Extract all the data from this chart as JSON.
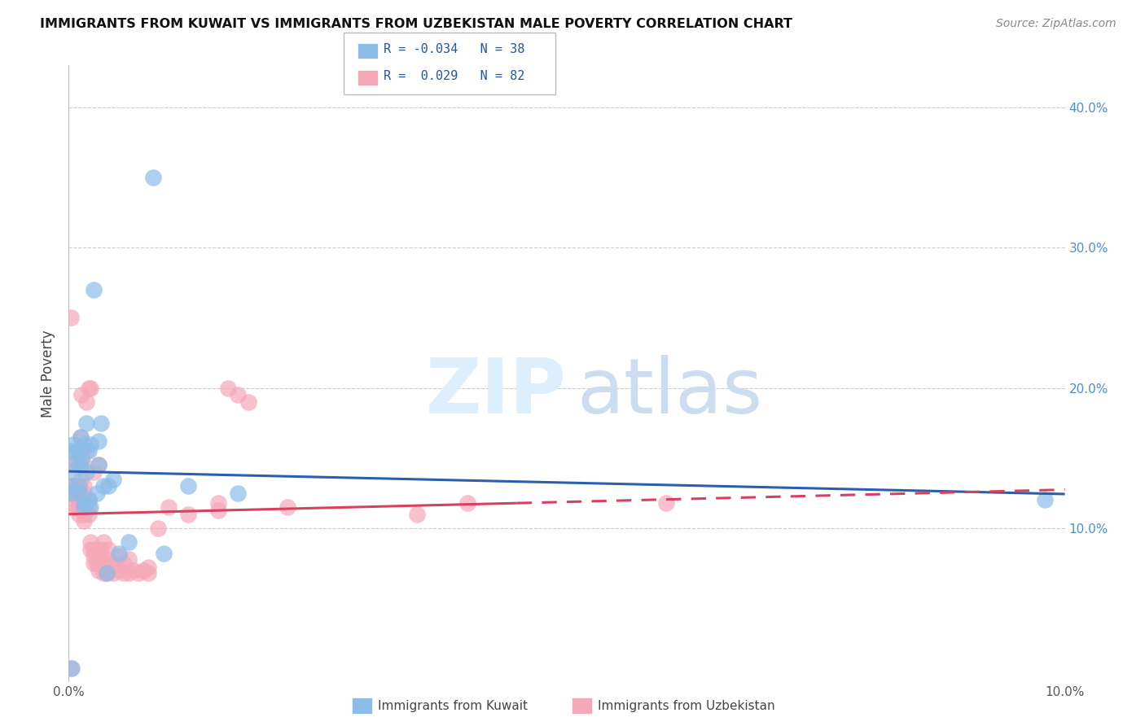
{
  "title": "IMMIGRANTS FROM KUWAIT VS IMMIGRANTS FROM UZBEKISTAN MALE POVERTY CORRELATION CHART",
  "source": "Source: ZipAtlas.com",
  "ylabel": "Male Poverty",
  "xlim": [
    0,
    0.1
  ],
  "ylim": [
    -0.01,
    0.43
  ],
  "yticks": [
    0.1,
    0.2,
    0.3,
    0.4
  ],
  "ytick_labels": [
    "10.0%",
    "20.0%",
    "30.0%",
    "40.0%"
  ],
  "xticks": [
    0.0,
    0.025,
    0.05,
    0.075,
    0.1
  ],
  "xtick_labels": [
    "0.0%",
    "",
    "",
    "",
    "10.0%"
  ],
  "grid_color": "#cccccc",
  "background_color": "#ffffff",
  "blue_color": "#8bbde8",
  "pink_color": "#f5a8b8",
  "blue_line_color": "#2b5fad",
  "pink_line_color": "#d94060",
  "legend_R_blue": "-0.034",
  "legend_N_blue": "38",
  "legend_R_pink": "0.029",
  "legend_N_pink": "82",
  "legend_label_blue": "Immigrants from Kuwait",
  "legend_label_pink": "Immigrants from Uzbekistan",
  "kuwait_x": [
    0.0002,
    0.0002,
    0.0003,
    0.0005,
    0.0005,
    0.0008,
    0.0008,
    0.001,
    0.001,
    0.0012,
    0.0012,
    0.0013,
    0.0015,
    0.0015,
    0.0015,
    0.0018,
    0.0018,
    0.002,
    0.002,
    0.0022,
    0.0022,
    0.0025,
    0.0028,
    0.003,
    0.003,
    0.0032,
    0.0035,
    0.0038,
    0.004,
    0.0045,
    0.005,
    0.006,
    0.0085,
    0.0095,
    0.012,
    0.017,
    0.098,
    0.0003
  ],
  "kuwait_y": [
    0.13,
    0.125,
    0.155,
    0.16,
    0.14,
    0.148,
    0.155,
    0.125,
    0.13,
    0.145,
    0.165,
    0.15,
    0.115,
    0.118,
    0.16,
    0.14,
    0.175,
    0.12,
    0.155,
    0.115,
    0.16,
    0.27,
    0.125,
    0.145,
    0.162,
    0.175,
    0.13,
    0.068,
    0.13,
    0.135,
    0.082,
    0.09,
    0.35,
    0.082,
    0.13,
    0.125,
    0.12,
    0.0
  ],
  "uzbekistan_x": [
    0.0002,
    0.0002,
    0.0003,
    0.0005,
    0.0005,
    0.0005,
    0.0005,
    0.0008,
    0.0008,
    0.001,
    0.001,
    0.001,
    0.001,
    0.001,
    0.0012,
    0.0012,
    0.0012,
    0.0012,
    0.0012,
    0.0013,
    0.0015,
    0.0015,
    0.0015,
    0.0015,
    0.0015,
    0.0015,
    0.0015,
    0.0018,
    0.0018,
    0.002,
    0.002,
    0.002,
    0.002,
    0.0022,
    0.0022,
    0.0022,
    0.0025,
    0.0025,
    0.0025,
    0.0025,
    0.0028,
    0.0028,
    0.003,
    0.003,
    0.003,
    0.003,
    0.0032,
    0.0032,
    0.0035,
    0.0035,
    0.0035,
    0.0038,
    0.0038,
    0.004,
    0.004,
    0.004,
    0.0045,
    0.0045,
    0.005,
    0.005,
    0.0055,
    0.0055,
    0.006,
    0.006,
    0.0065,
    0.007,
    0.0075,
    0.008,
    0.008,
    0.009,
    0.01,
    0.012,
    0.015,
    0.015,
    0.016,
    0.017,
    0.018,
    0.022,
    0.035,
    0.04,
    0.0002,
    0.06
  ],
  "uzbekistan_y": [
    0.125,
    0.25,
    0.13,
    0.115,
    0.125,
    0.13,
    0.145,
    0.115,
    0.13,
    0.11,
    0.115,
    0.12,
    0.13,
    0.145,
    0.12,
    0.125,
    0.135,
    0.155,
    0.165,
    0.195,
    0.105,
    0.11,
    0.115,
    0.12,
    0.125,
    0.13,
    0.145,
    0.155,
    0.19,
    0.11,
    0.115,
    0.12,
    0.2,
    0.085,
    0.09,
    0.2,
    0.075,
    0.08,
    0.085,
    0.14,
    0.075,
    0.08,
    0.07,
    0.075,
    0.08,
    0.145,
    0.075,
    0.085,
    0.068,
    0.075,
    0.09,
    0.068,
    0.078,
    0.07,
    0.075,
    0.085,
    0.068,
    0.075,
    0.07,
    0.08,
    0.068,
    0.075,
    0.068,
    0.078,
    0.07,
    0.068,
    0.07,
    0.068,
    0.072,
    0.1,
    0.115,
    0.11,
    0.118,
    0.113,
    0.2,
    0.195,
    0.19,
    0.115,
    0.11,
    0.118,
    0.0,
    0.118
  ]
}
